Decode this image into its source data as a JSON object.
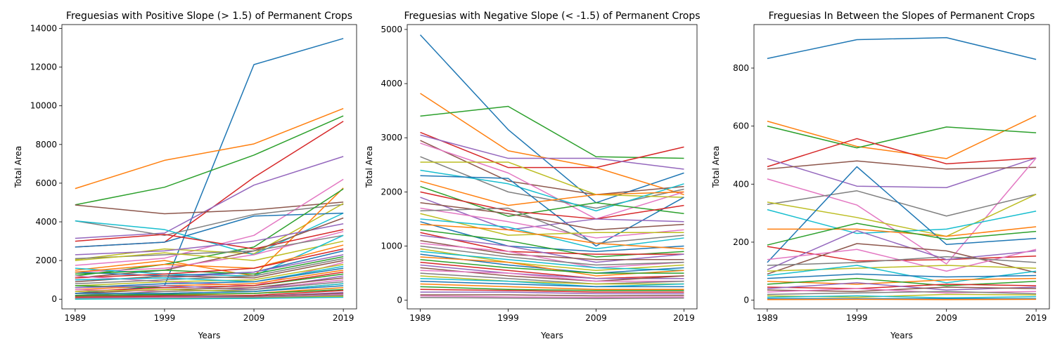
{
  "palette": [
    "#1f77b4",
    "#ff7f0e",
    "#2ca02c",
    "#d62728",
    "#9467bd",
    "#8c564b",
    "#e377c2",
    "#7f7f7f",
    "#bcbd22",
    "#17becf"
  ],
  "chart_data": [
    {
      "type": "line",
      "title": "Freguesias with Positive Slope (> 1.5) of Permanent Crops",
      "xlabel": "Years",
      "ylabel": "Total Area",
      "x": [
        "1989",
        "1999",
        "2009",
        "2019"
      ],
      "ylim": [
        -500,
        14200
      ],
      "yticks": [
        "0",
        "2000",
        "4000",
        "6000",
        "8000",
        "10000",
        "12000",
        "14000"
      ],
      "grid": false,
      "legend": "none",
      "series": [
        {
          "values": [
            300,
            700,
            12130,
            13480
          ]
        },
        {
          "values": [
            5720,
            7180,
            8030,
            9860
          ]
        },
        {
          "values": [
            4880,
            5790,
            7450,
            9480
          ]
        },
        {
          "values": [
            2700,
            2950,
            6300,
            9200
          ]
        },
        {
          "values": [
            3150,
            3420,
            5900,
            7380
          ]
        },
        {
          "values": [
            4870,
            4420,
            4620,
            5020
          ]
        },
        {
          "values": [
            1750,
            2120,
            3300,
            6200
          ]
        },
        {
          "values": [
            4050,
            3300,
            4380,
            4900
          ]
        },
        {
          "values": [
            2050,
            2600,
            2350,
            4950
          ]
        },
        {
          "values": [
            4050,
            3600,
            2300,
            4450
          ]
        },
        {
          "values": [
            2700,
            2950,
            4300,
            4450
          ]
        },
        {
          "values": [
            1500,
            2000,
            1200,
            5750
          ]
        },
        {
          "values": [
            1200,
            1800,
            2700,
            5700
          ]
        },
        {
          "values": [
            3000,
            3350,
            2600,
            3600
          ]
        },
        {
          "values": [
            2300,
            2500,
            3000,
            3900
          ]
        },
        {
          "values": [
            1100,
            1500,
            2500,
            4200
          ]
        },
        {
          "values": [
            1400,
            1600,
            2300,
            3500
          ]
        },
        {
          "values": [
            2100,
            2300,
            2500,
            3300
          ]
        },
        {
          "values": [
            2000,
            2400,
            2000,
            3000
          ]
        },
        {
          "values": [
            1600,
            1300,
            1200,
            3300
          ]
        },
        {
          "values": [
            1400,
            1200,
            1400,
            2500
          ]
        },
        {
          "values": [
            1400,
            1800,
            1600,
            2800
          ]
        },
        {
          "values": [
            1300,
            1500,
            1300,
            2200
          ]
        },
        {
          "values": [
            1100,
            1300,
            1600,
            2600
          ]
        },
        {
          "values": [
            1000,
            1100,
            1400,
            2300
          ]
        },
        {
          "values": [
            900,
            1200,
            1100,
            2000
          ]
        },
        {
          "values": [
            1200,
            900,
            700,
            1900
          ]
        },
        {
          "values": [
            800,
            1000,
            1200,
            2100
          ]
        },
        {
          "values": [
            700,
            900,
            1000,
            1800
          ]
        },
        {
          "values": [
            1000,
            1100,
            900,
            1700
          ]
        },
        {
          "values": [
            600,
            800,
            900,
            1600
          ]
        },
        {
          "values": [
            500,
            700,
            800,
            1500
          ]
        },
        {
          "values": [
            700,
            600,
            700,
            1300
          ]
        },
        {
          "values": [
            400,
            600,
            700,
            1400
          ]
        },
        {
          "values": [
            600,
            700,
            500,
            1200
          ]
        },
        {
          "values": [
            300,
            500,
            600,
            1100
          ]
        },
        {
          "values": [
            500,
            400,
            500,
            1000
          ]
        },
        {
          "values": [
            200,
            400,
            500,
            900
          ]
        },
        {
          "values": [
            400,
            500,
            400,
            800
          ]
        },
        {
          "values": [
            150,
            300,
            400,
            800
          ]
        },
        {
          "values": [
            300,
            300,
            400,
            700
          ]
        },
        {
          "values": [
            100,
            200,
            300,
            600
          ]
        },
        {
          "values": [
            200,
            250,
            300,
            500
          ]
        },
        {
          "values": [
            80,
            150,
            200,
            450
          ]
        },
        {
          "values": [
            50,
            100,
            150,
            350
          ]
        },
        {
          "values": [
            150,
            200,
            150,
            300
          ]
        },
        {
          "values": [
            30,
            80,
            100,
            250
          ]
        },
        {
          "values": [
            20,
            50,
            80,
            200
          ]
        },
        {
          "values": [
            10,
            30,
            50,
            150
          ]
        },
        {
          "values": [
            5,
            20,
            40,
            100
          ]
        }
      ]
    },
    {
      "type": "line",
      "title": "Freguesias with Negative Slope (< -1.5) of Permanent Crops",
      "xlabel": "Years",
      "ylabel": "Total Area",
      "x": [
        "1989",
        "1999",
        "2009",
        "2019"
      ],
      "ylim": [
        -160,
        5090
      ],
      "yticks": [
        "0",
        "1000",
        "2000",
        "3000",
        "4000",
        "5000"
      ],
      "grid": false,
      "legend": "none",
      "series": [
        {
          "values": [
            4900,
            3150,
            1800,
            2350
          ]
        },
        {
          "values": [
            3820,
            2760,
            2450,
            1950
          ]
        },
        {
          "values": [
            3400,
            3580,
            2650,
            2620
          ]
        },
        {
          "values": [
            3100,
            2450,
            2450,
            2830
          ]
        },
        {
          "values": [
            3050,
            2620,
            2620,
            2420
          ]
        },
        {
          "values": [
            2950,
            2200,
            1950,
            2100
          ]
        },
        {
          "values": [
            2900,
            2350,
            1500,
            2000
          ]
        },
        {
          "values": [
            2650,
            2000,
            1700,
            2050
          ]
        },
        {
          "values": [
            2550,
            2550,
            1950,
            1900
          ]
        },
        {
          "values": [
            2400,
            2150,
            1650,
            2150
          ]
        },
        {
          "values": [
            2300,
            2250,
            1000,
            1900
          ]
        },
        {
          "values": [
            2200,
            1750,
            1950,
            2000
          ]
        },
        {
          "values": [
            2100,
            1550,
            1800,
            1600
          ]
        },
        {
          "values": [
            2000,
            1650,
            1500,
            1750
          ]
        },
        {
          "values": [
            1900,
            1300,
            1500,
            1450
          ]
        },
        {
          "values": [
            1800,
            1600,
            1300,
            1400
          ]
        },
        {
          "values": [
            1700,
            1450,
            1150,
            1300
          ]
        },
        {
          "values": [
            1650,
            1700,
            1050,
            1200
          ]
        },
        {
          "values": [
            1600,
            1200,
            1250,
            1250
          ]
        },
        {
          "values": [
            1500,
            1350,
            950,
            1150
          ]
        },
        {
          "values": [
            1450,
            1000,
            900,
            1000
          ]
        },
        {
          "values": [
            1400,
            1300,
            1050,
            950
          ]
        },
        {
          "values": [
            1300,
            1100,
            800,
            900
          ]
        },
        {
          "values": [
            1250,
            900,
            850,
            850
          ]
        },
        {
          "values": [
            1200,
            1000,
            700,
            850
          ]
        },
        {
          "values": [
            1100,
            850,
            750,
            750
          ]
        },
        {
          "values": [
            1050,
            900,
            600,
            700
          ]
        },
        {
          "values": [
            1000,
            800,
            650,
            700
          ]
        },
        {
          "values": [
            950,
            700,
            550,
            650
          ]
        },
        {
          "values": [
            900,
            750,
            600,
            550
          ]
        },
        {
          "values": [
            850,
            650,
            500,
            600
          ]
        },
        {
          "values": [
            800,
            700,
            450,
            550
          ]
        },
        {
          "values": [
            750,
            600,
            500,
            500
          ]
        },
        {
          "values": [
            700,
            550,
            400,
            450
          ]
        },
        {
          "values": [
            650,
            500,
            400,
            400
          ]
        },
        {
          "values": [
            600,
            450,
            350,
            450
          ]
        },
        {
          "values": [
            550,
            500,
            350,
            350
          ]
        },
        {
          "values": [
            500,
            400,
            300,
            350
          ]
        },
        {
          "values": [
            450,
            350,
            300,
            300
          ]
        },
        {
          "values": [
            400,
            350,
            250,
            300
          ]
        },
        {
          "values": [
            350,
            300,
            250,
            250
          ]
        },
        {
          "values": [
            300,
            250,
            200,
            200
          ]
        },
        {
          "values": [
            250,
            200,
            180,
            180
          ]
        },
        {
          "values": [
            200,
            180,
            150,
            150
          ]
        },
        {
          "values": [
            150,
            150,
            120,
            120
          ]
        },
        {
          "values": [
            100,
            100,
            80,
            90
          ]
        },
        {
          "values": [
            80,
            60,
            50,
            60
          ]
        },
        {
          "values": [
            50,
            40,
            30,
            40
          ]
        }
      ]
    },
    {
      "type": "line",
      "title": "Freguesias In Between the Slopes of Permanent Crops",
      "xlabel": "Years",
      "ylabel": "Total Area",
      "x": [
        "1989",
        "1999",
        "2009",
        "2019"
      ],
      "ylim": [
        -30,
        950
      ],
      "yticks": [
        "0",
        "200",
        "400",
        "600",
        "800"
      ],
      "grid": false,
      "legend": "none",
      "series": [
        {
          "values": [
            833,
            898,
            905,
            830
          ]
        },
        {
          "values": [
            617,
            530,
            488,
            636
          ]
        },
        {
          "values": [
            600,
            525,
            597,
            577
          ]
        },
        {
          "values": [
            460,
            557,
            470,
            490
          ]
        },
        {
          "values": [
            488,
            393,
            388,
            490
          ]
        },
        {
          "values": [
            452,
            480,
            452,
            458
          ]
        },
        {
          "values": [
            418,
            328,
            125,
            490
          ]
        },
        {
          "values": [
            330,
            377,
            290,
            365
          ]
        },
        {
          "values": [
            338,
            285,
            220,
            365
          ]
        },
        {
          "values": [
            312,
            230,
            245,
            307
          ]
        },
        {
          "values": [
            130,
            460,
            192,
            213
          ]
        },
        {
          "values": [
            245,
            245,
            220,
            253
          ]
        },
        {
          "values": [
            190,
            265,
            210,
            237
          ]
        },
        {
          "values": [
            185,
            135,
            140,
            152
          ]
        },
        {
          "values": [
            105,
            240,
            140,
            170
          ]
        },
        {
          "values": [
            90,
            195,
            170,
            95
          ]
        },
        {
          "values": [
            140,
            175,
            100,
            175
          ]
        },
        {
          "values": [
            120,
            130,
            150,
            130
          ]
        },
        {
          "values": [
            100,
            110,
            120,
            110
          ]
        },
        {
          "values": [
            85,
            120,
            60,
            100
          ]
        },
        {
          "values": [
            75,
            90,
            80,
            85
          ]
        },
        {
          "values": [
            65,
            55,
            70,
            75
          ]
        },
        {
          "values": [
            55,
            75,
            50,
            65
          ]
        },
        {
          "values": [
            45,
            40,
            55,
            50
          ]
        },
        {
          "values": [
            40,
            60,
            35,
            45
          ]
        },
        {
          "values": [
            35,
            30,
            45,
            40
          ]
        },
        {
          "values": [
            28,
            40,
            25,
            30
          ]
        },
        {
          "values": [
            20,
            25,
            30,
            22
          ]
        },
        {
          "values": [
            15,
            10,
            20,
            18
          ]
        },
        {
          "values": [
            10,
            15,
            8,
            12
          ]
        },
        {
          "values": [
            5,
            5,
            5,
            5
          ]
        },
        {
          "values": [
            2,
            3,
            2,
            3
          ]
        }
      ]
    }
  ]
}
